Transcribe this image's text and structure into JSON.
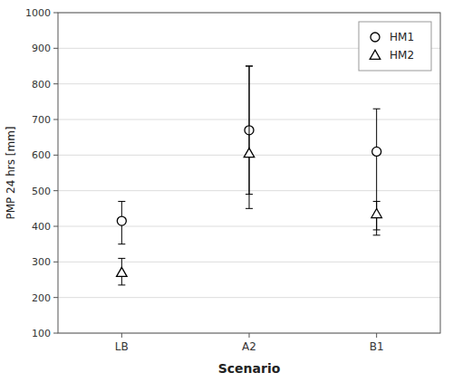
{
  "chart_data": {
    "type": "errorbar",
    "xlabel": "Scenario",
    "ylabel": "PMP 24 hrs [mm]",
    "categories": [
      "LB",
      "A2",
      "B1"
    ],
    "series": [
      {
        "name": "HM1",
        "color": "#000000",
        "marker": "circle",
        "values": [
          415,
          670,
          610
        ],
        "lower": [
          350,
          490,
          390
        ],
        "upper": [
          470,
          850,
          730
        ]
      },
      {
        "name": "HM2",
        "color": "#000000",
        "marker": "triangle",
        "values": [
          270,
          605,
          435
        ],
        "lower": [
          235,
          450,
          375
        ],
        "upper": [
          310,
          850,
          470
        ]
      }
    ],
    "ylim": [
      100,
      1000
    ],
    "yticks": [
      100,
      200,
      300,
      400,
      500,
      600,
      700,
      800,
      900,
      1000
    ],
    "grid": true,
    "legend": "upper right"
  }
}
